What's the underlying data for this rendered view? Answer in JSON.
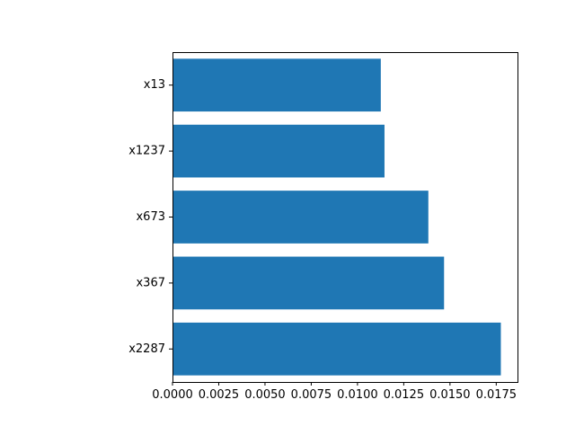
{
  "chart_data": {
    "type": "bar",
    "orientation": "horizontal",
    "categories": [
      "x2287",
      "x367",
      "x673",
      "x1237",
      "x13"
    ],
    "values": [
      0.01775,
      0.01468,
      0.01383,
      0.01146,
      0.01126
    ],
    "xlim": [
      0,
      0.01865
    ],
    "x_ticks": [
      0.0,
      0.0025,
      0.005,
      0.0075,
      0.01,
      0.0125,
      0.015,
      0.0175
    ],
    "x_tick_labels": [
      "0.0000",
      "0.0025",
      "0.0050",
      "0.0075",
      "0.0100",
      "0.0125",
      "0.0150",
      "0.0175"
    ],
    "title": "",
    "xlabel": "",
    "ylabel": "",
    "grid": false,
    "legend": "none",
    "bar_color": "#1f77b4"
  }
}
